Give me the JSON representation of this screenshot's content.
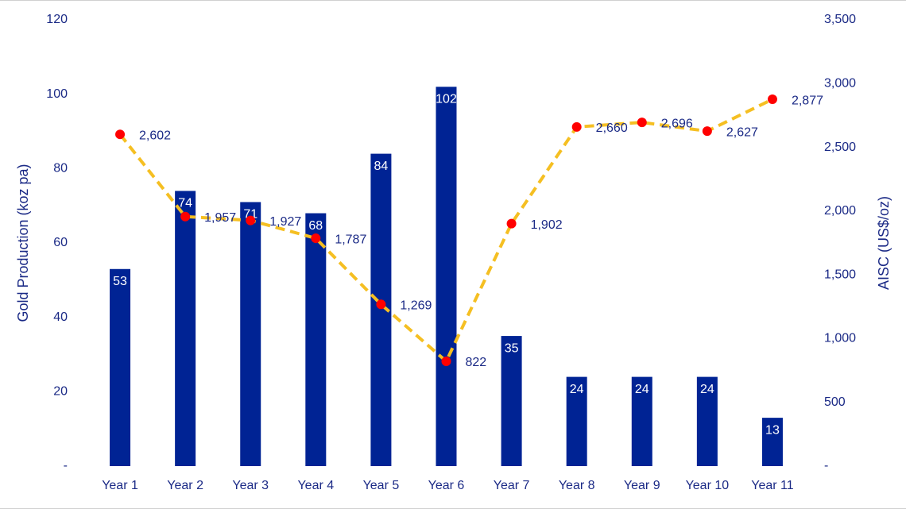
{
  "chart_data": {
    "type": "bar_line",
    "y_label": "Gold Production (koz pa)",
    "y2_label": "AISC (US$/oz)",
    "categories": [
      "Year 1",
      "Year 2",
      "Year 3",
      "Year 4",
      "Year 5",
      "Year 6",
      "Year 7",
      "Year 8",
      "Year 9",
      "Year 10",
      "Year 11"
    ],
    "ylim": [
      0,
      120
    ],
    "yticks": [
      {
        "value": 0,
        "label": "-"
      },
      20,
      40,
      60,
      80,
      100,
      120
    ],
    "y2lim": [
      0,
      3500
    ],
    "y2ticks": [
      {
        "value": 0,
        "label": "-"
      },
      500,
      {
        "value": 1000,
        "label": "1,000"
      },
      {
        "value": 1500,
        "label": "1,500"
      },
      {
        "value": 2000,
        "label": "2,000"
      },
      {
        "value": 2500,
        "label": "2,500"
      },
      {
        "value": 3000,
        "label": "3,000"
      },
      {
        "value": 3500,
        "label": "3,500"
      }
    ],
    "grid": false,
    "series": [
      {
        "type": "bar",
        "color": "#002394",
        "label_color": "#ffffff",
        "values": [
          53,
          74,
          71,
          68,
          84,
          102,
          35,
          24,
          24,
          24,
          13
        ]
      },
      {
        "type": "line",
        "axis": "y2",
        "color": "#f5bf22",
        "marker_color": "#ff0000",
        "dashed": true,
        "values": [
          2602,
          1957,
          1927,
          1787,
          1269,
          822,
          1902,
          2660,
          2696,
          2627,
          2877
        ],
        "value_labels": [
          "2,602",
          "1,957",
          "1,927",
          "1,787",
          "1,269",
          "822",
          "1,902",
          "2,660",
          "2,696",
          "2,627",
          "2,877"
        ]
      }
    ]
  }
}
